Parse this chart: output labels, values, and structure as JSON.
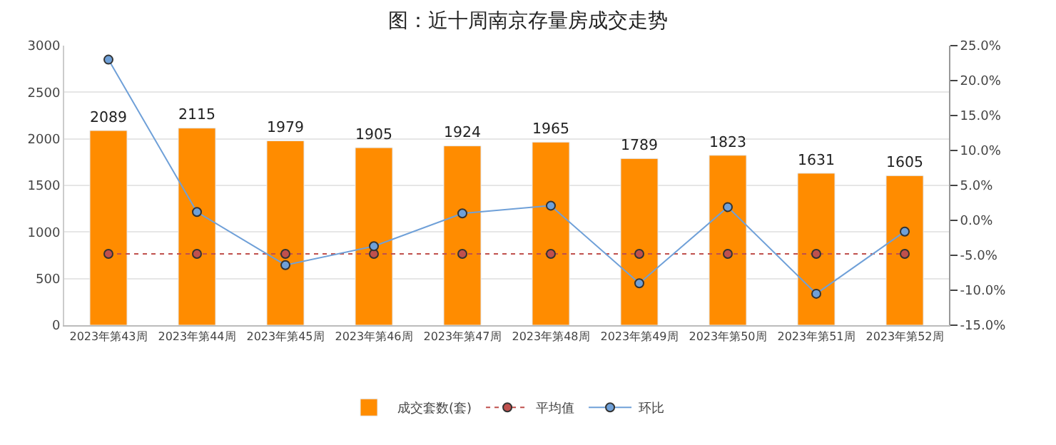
{
  "chart_data": {
    "type": "bar",
    "title": "图：近十周南京存量房成交走势",
    "categories": [
      "2023年第43周",
      "2023年第44周",
      "2023年第45周",
      "2023年第46周",
      "2023年第47周",
      "2023年第48周",
      "2023年第49周",
      "2023年第50周",
      "2023年第51周",
      "2023年第52周"
    ],
    "series": [
      {
        "name": "成交套数(套)",
        "color": "#ff8c00",
        "values": [
          2089,
          2115,
          1979,
          1905,
          1924,
          1965,
          1789,
          1823,
          1631,
          1605
        ],
        "data_labels": true
      },
      {
        "name": "平均值",
        "type": "line",
        "axis": "y2",
        "color": "#c0504d",
        "line_style": "dotted",
        "marker": "circle",
        "values": [
          -4.8,
          -4.8,
          -4.8,
          -4.8,
          -4.8,
          -4.8,
          -4.8,
          -4.8,
          -4.8,
          -4.8
        ]
      },
      {
        "name": "环比",
        "type": "line",
        "axis": "y2",
        "color": "#6fa0d8",
        "line_style": "solid",
        "marker": "circle",
        "values": [
          23.0,
          1.2,
          -6.4,
          -3.7,
          1.0,
          2.1,
          -9.0,
          1.9,
          -10.5,
          -1.6
        ]
      }
    ],
    "ylim": [
      0,
      3000
    ],
    "yticks": [
      0,
      500,
      1000,
      1500,
      2000,
      2500,
      3000
    ],
    "y2lim": [
      -15,
      25
    ],
    "y2ticks": [
      {
        "value": -15,
        "label": "-15.0%"
      },
      {
        "value": -10,
        "label": "-10.0%"
      },
      {
        "value": -5,
        "label": "-5.0%"
      },
      {
        "value": 0,
        "label": "0.0%"
      },
      {
        "value": 5,
        "label": "5.0%"
      },
      {
        "value": 10,
        "label": "10.0%"
      },
      {
        "value": 15,
        "label": "15.0%"
      },
      {
        "value": 20,
        "label": "20.0%"
      },
      {
        "value": 25,
        "label": "25.0%"
      }
    ],
    "grid": "y",
    "legend": "bottom"
  }
}
